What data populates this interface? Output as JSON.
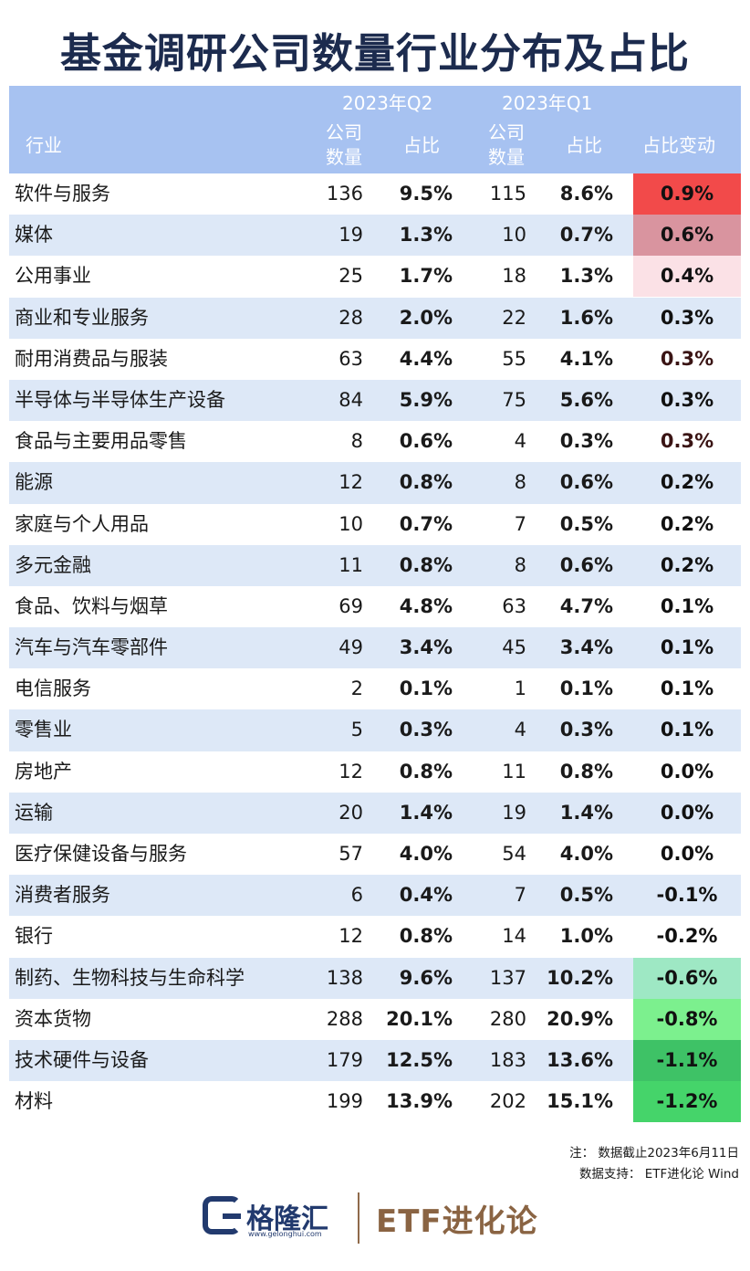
{
  "title": "基金调研公司数量行业分布及占比",
  "header": {
    "period_q2": "2023年Q2",
    "period_q1": "2023年Q1",
    "industry": "行业",
    "count_line1": "公司",
    "count_line2": "数量",
    "share": "占比",
    "change": "占比变动"
  },
  "rows": [
    {
      "industry": "软件与服务",
      "q2_count": "136",
      "q2_share": "9.5%",
      "q1_count": "115",
      "q1_share": "8.6%",
      "change": "0.9%",
      "bg": "#f24a4a",
      "fg": "#111111"
    },
    {
      "industry": "媒体",
      "q2_count": "19",
      "q2_share": "1.3%",
      "q1_count": "10",
      "q1_share": "0.7%",
      "change": "0.6%",
      "bg": "#d9949f",
      "fg": "#111111"
    },
    {
      "industry": "公用事业",
      "q2_count": "25",
      "q2_share": "1.7%",
      "q1_count": "18",
      "q1_share": "1.3%",
      "change": "0.4%",
      "bg": "#fbe1e6",
      "fg": "#111111"
    },
    {
      "industry": "商业和专业服务",
      "q2_count": "28",
      "q2_share": "2.0%",
      "q1_count": "22",
      "q1_share": "1.6%",
      "change": "0.3%",
      "bg": "",
      "fg": "#111111"
    },
    {
      "industry": "耐用消费品与服装",
      "q2_count": "63",
      "q2_share": "4.4%",
      "q1_count": "55",
      "q1_share": "4.1%",
      "change": "0.3%",
      "bg": "",
      "fg": "#3a1414"
    },
    {
      "industry": "半导体与半导体生产设备",
      "q2_count": "84",
      "q2_share": "5.9%",
      "q1_count": "75",
      "q1_share": "5.6%",
      "change": "0.3%",
      "bg": "",
      "fg": "#111111"
    },
    {
      "industry": "食品与主要用品零售",
      "q2_count": "8",
      "q2_share": "0.6%",
      "q1_count": "4",
      "q1_share": "0.3%",
      "change": "0.3%",
      "bg": "",
      "fg": "#3a1414"
    },
    {
      "industry": "能源",
      "q2_count": "12",
      "q2_share": "0.8%",
      "q1_count": "8",
      "q1_share": "0.6%",
      "change": "0.2%",
      "bg": "",
      "fg": "#111111"
    },
    {
      "industry": "家庭与个人用品",
      "q2_count": "10",
      "q2_share": "0.7%",
      "q1_count": "7",
      "q1_share": "0.5%",
      "change": "0.2%",
      "bg": "",
      "fg": "#111111"
    },
    {
      "industry": "多元金融",
      "q2_count": "11",
      "q2_share": "0.8%",
      "q1_count": "8",
      "q1_share": "0.6%",
      "change": "0.2%",
      "bg": "",
      "fg": "#111111"
    },
    {
      "industry": "食品、饮料与烟草",
      "q2_count": "69",
      "q2_share": "4.8%",
      "q1_count": "63",
      "q1_share": "4.7%",
      "change": "0.1%",
      "bg": "",
      "fg": "#111111"
    },
    {
      "industry": "汽车与汽车零部件",
      "q2_count": "49",
      "q2_share": "3.4%",
      "q1_count": "45",
      "q1_share": "3.4%",
      "change": "0.1%",
      "bg": "",
      "fg": "#111111"
    },
    {
      "industry": "电信服务",
      "q2_count": "2",
      "q2_share": "0.1%",
      "q1_count": "1",
      "q1_share": "0.1%",
      "change": "0.1%",
      "bg": "",
      "fg": "#111111"
    },
    {
      "industry": "零售业",
      "q2_count": "5",
      "q2_share": "0.3%",
      "q1_count": "4",
      "q1_share": "0.3%",
      "change": "0.1%",
      "bg": "",
      "fg": "#111111"
    },
    {
      "industry": "房地产",
      "q2_count": "12",
      "q2_share": "0.8%",
      "q1_count": "11",
      "q1_share": "0.8%",
      "change": "0.0%",
      "bg": "",
      "fg": "#111111"
    },
    {
      "industry": "运输",
      "q2_count": "20",
      "q2_share": "1.4%",
      "q1_count": "19",
      "q1_share": "1.4%",
      "change": "0.0%",
      "bg": "",
      "fg": "#111111"
    },
    {
      "industry": "医疗保健设备与服务",
      "q2_count": "57",
      "q2_share": "4.0%",
      "q1_count": "54",
      "q1_share": "4.0%",
      "change": "0.0%",
      "bg": "",
      "fg": "#111111"
    },
    {
      "industry": "消费者服务",
      "q2_count": "6",
      "q2_share": "0.4%",
      "q1_count": "7",
      "q1_share": "0.5%",
      "change": "-0.1%",
      "bg": "",
      "fg": "#111111"
    },
    {
      "industry": "银行",
      "q2_count": "12",
      "q2_share": "0.8%",
      "q1_count": "14",
      "q1_share": "1.0%",
      "change": "-0.2%",
      "bg": "",
      "fg": "#111111"
    },
    {
      "industry": "制药、生物科技与生命科学",
      "q2_count": "138",
      "q2_share": "9.6%",
      "q1_count": "137",
      "q1_share": "10.2%",
      "change": "-0.6%",
      "bg": "#9ee8c4",
      "fg": "#111111"
    },
    {
      "industry": "资本货物",
      "q2_count": "288",
      "q2_share": "20.1%",
      "q1_count": "280",
      "q1_share": "20.9%",
      "change": "-0.8%",
      "bg": "#7cf08e",
      "fg": "#111111"
    },
    {
      "industry": "技术硬件与设备",
      "q2_count": "179",
      "q2_share": "12.5%",
      "q1_count": "183",
      "q1_share": "13.6%",
      "change": "-1.1%",
      "bg": "#3ec266",
      "fg": "#111111"
    },
    {
      "industry": "材料",
      "q2_count": "199",
      "q2_share": "13.9%",
      "q1_count": "202",
      "q1_share": "15.1%",
      "change": "-1.2%",
      "bg": "#45d46a",
      "fg": "#111111"
    }
  ],
  "notes": {
    "note": "注：  数据截止2023年6月11日",
    "source": "数据支持：  ETF进化论   Wind"
  },
  "footer": {
    "brand": "格隆汇",
    "url": "www.gelonghui.com",
    "etf": "ETF进化论"
  }
}
